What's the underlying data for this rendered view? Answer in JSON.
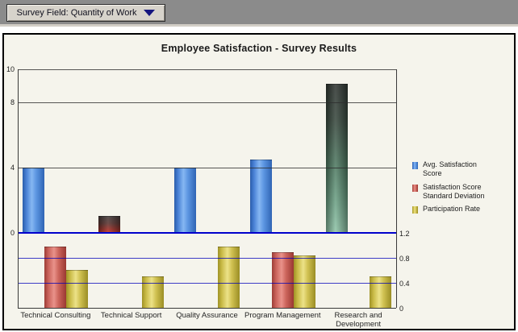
{
  "toolbar": {
    "dropdown_label": "Survey Field: Quantity of Work"
  },
  "chart": {
    "title": "Employee Satisfaction - Survey Results"
  },
  "chart_data": {
    "type": "bar",
    "title": "Employee Satisfaction - Survey Results",
    "categories": [
      "Technical Consulting",
      "Technical Support",
      "Quality Assurance",
      "Program Management",
      "Research and Development"
    ],
    "series": [
      {
        "name": "Avg. Satisfaction Score",
        "axis": "left",
        "color": "blue",
        "values": [
          4.0,
          1.0,
          4.0,
          4.45,
          9.1
        ],
        "bar_styles": [
          "blue",
          "black-red",
          "blue",
          "blue",
          "black-green"
        ]
      },
      {
        "name": "Satisfaction Score Standard Deviation",
        "axis": "right",
        "color": "red",
        "values": [
          0.98,
          0,
          0,
          0.88,
          0
        ]
      },
      {
        "name": "Participation Rate",
        "axis": "right",
        "color": "yellow",
        "values": [
          0.6,
          0.5,
          0.98,
          0.83,
          0.5
        ]
      }
    ],
    "left_axis": {
      "ticks": [
        10,
        8,
        4,
        0
      ],
      "range": [
        0,
        10.35
      ]
    },
    "right_axis": {
      "ticks": [
        1.2,
        0.8,
        0.4,
        0
      ],
      "range": [
        0,
        1.2
      ]
    },
    "grid": true,
    "legend_position": "right",
    "legend": [
      {
        "label": "Avg. Satisfaction Score",
        "color": "blue"
      },
      {
        "label": "Satisfaction Score Standard Deviation",
        "color": "red"
      },
      {
        "label": "Participation Rate",
        "color": "yellow"
      }
    ],
    "colors": {
      "blue": "#3c78cc",
      "red": "#c85a50",
      "yellow": "#d6c654",
      "gridline_dark": "#3a3a3a",
      "gridline_blue": "#0000bb",
      "zero_line": "#0000cc",
      "panel_background": "#f5f4ec",
      "toolbar_background": "#8b8b8b",
      "highlight_low": "black-red",
      "highlight_high": "black-green"
    }
  }
}
